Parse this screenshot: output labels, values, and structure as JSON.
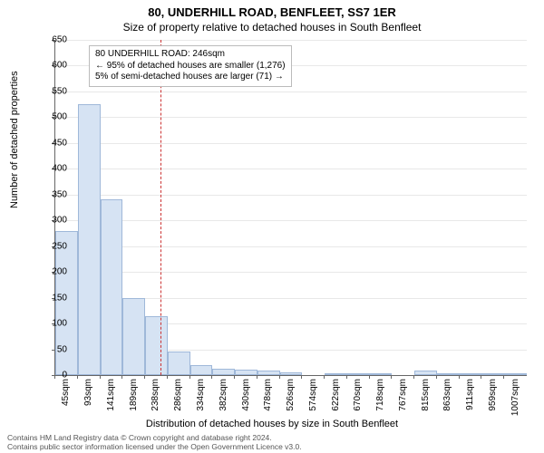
{
  "title": "80, UNDERHILL ROAD, BENFLEET, SS7 1ER",
  "subtitle": "Size of property relative to detached houses in South Benfleet",
  "chart": {
    "type": "histogram",
    "ylabel": "Number of detached properties",
    "xlabel": "Distribution of detached houses by size in South Benfleet",
    "ylim": [
      0,
      650
    ],
    "ytick_step": 50,
    "yticks": [
      0,
      50,
      100,
      150,
      200,
      250,
      300,
      350,
      400,
      450,
      500,
      550,
      600,
      650
    ],
    "xtick_labels": [
      "45sqm",
      "93sqm",
      "141sqm",
      "189sqm",
      "238sqm",
      "286sqm",
      "334sqm",
      "382sqm",
      "430sqm",
      "478sqm",
      "526sqm",
      "574sqm",
      "622sqm",
      "670sqm",
      "718sqm",
      "767sqm",
      "815sqm",
      "863sqm",
      "911sqm",
      "959sqm",
      "1007sqm"
    ],
    "bar_values": [
      280,
      525,
      340,
      150,
      115,
      45,
      20,
      12,
      10,
      8,
      6,
      0,
      4,
      4,
      4,
      0,
      8,
      3,
      3,
      3,
      3
    ],
    "bar_fill": "#d6e3f3",
    "bar_border": "#9fb8d9",
    "grid_color": "#e8e8e8",
    "axis_color": "#666666",
    "background": "#ffffff",
    "reference_value_sqm": 246,
    "reference_color": "#cc3333",
    "title_fontsize": 13,
    "subtitle_fontsize": 12,
    "label_fontsize": 11,
    "tick_fontsize": 10
  },
  "annotation": {
    "line1": "80 UNDERHILL ROAD: 246sqm",
    "line2": "← 95% of detached houses are smaller (1,276)",
    "line3": "5% of semi-detached houses are larger (71) →"
  },
  "footer": {
    "line1": "Contains HM Land Registry data © Crown copyright and database right 2024.",
    "line2": "Contains public sector information licensed under the Open Government Licence v3.0."
  }
}
